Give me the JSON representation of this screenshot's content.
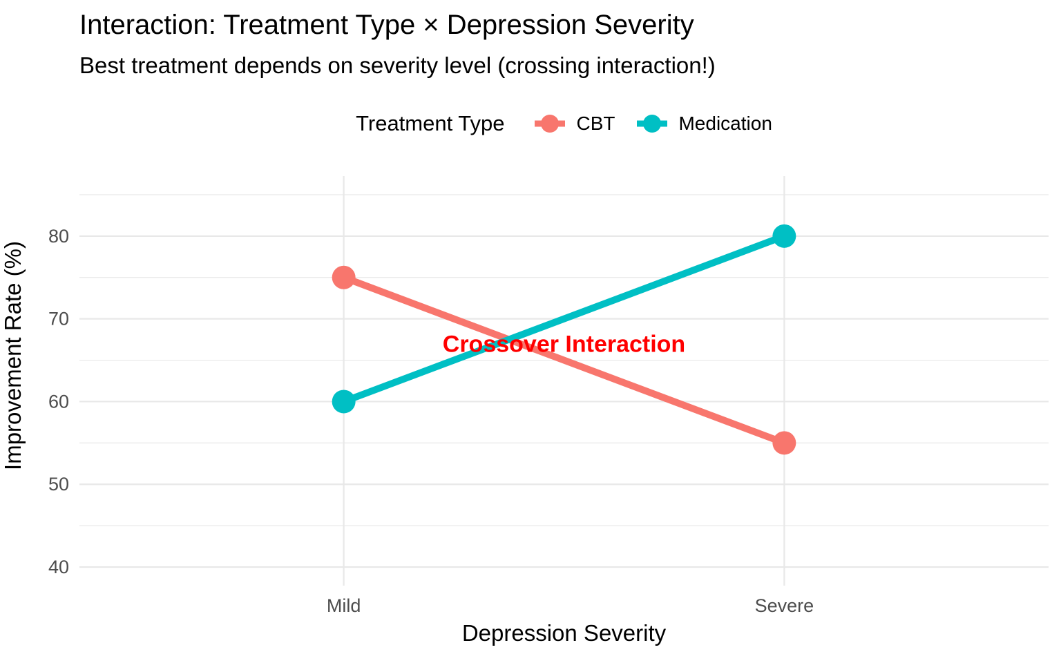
{
  "title": "Interaction: Treatment Type × Depression Severity",
  "subtitle": "Best treatment depends on severity level (crossing interaction!)",
  "legend": {
    "title": "Treatment Type",
    "entries": [
      {
        "label": "CBT",
        "color": "#F8766D"
      },
      {
        "label": "Medication",
        "color": "#00BFC4"
      }
    ]
  },
  "chart_data": {
    "type": "line",
    "categories": [
      "Mild",
      "Severe"
    ],
    "x_positions": [
      1,
      2
    ],
    "x_domain": [
      0.4,
      2.6
    ],
    "series": [
      {
        "name": "CBT",
        "color": "#F8766D",
        "values": [
          75,
          55
        ]
      },
      {
        "name": "Medication",
        "color": "#00BFC4",
        "values": [
          60,
          80
        ]
      }
    ],
    "title": "Interaction: Treatment Type × Depression Severity",
    "subtitle": "Best treatment depends on severity level (crossing interaction!)",
    "xlabel": "Depression Severity",
    "ylabel": "Improvement Rate (%)",
    "ylim": [
      37.75,
      87.25
    ],
    "y_major_breaks": [
      40,
      50,
      60,
      70,
      80
    ],
    "y_minor_breaks": [
      45,
      55,
      65,
      75,
      85
    ],
    "grid": true,
    "legend_position": "top",
    "annotation": {
      "text": "Crossover Interaction",
      "x": 1.5,
      "y": 67,
      "color": "#FF0000"
    }
  },
  "colors": {
    "background": "#FFFFFF",
    "grid": "#E8E8E8",
    "tick_label": "#4D4D4D",
    "text": "#000000"
  }
}
